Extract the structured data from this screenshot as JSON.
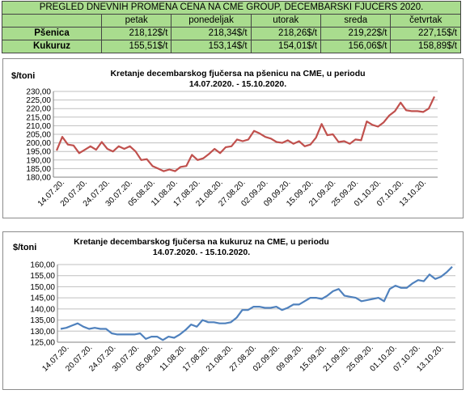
{
  "table": {
    "title": "PREGLED DNEVNIH PROMENA CENA NA CME GROUP, DECEMBARSKI  FJUCERS 2020.",
    "days": [
      "petak",
      "ponedeljak",
      "utorak",
      "sreda",
      "četvrtak"
    ],
    "rows": [
      {
        "label": "Pšenica",
        "values": [
          "218,12$/t",
          "218,34$/t",
          "218,26$/t",
          "219,22$/t",
          "227,15$/t"
        ]
      },
      {
        "label": "Kukuruz",
        "values": [
          "155,51$/t",
          "153,14$/t",
          "154,01$/t",
          "156,06$/t",
          "158,89$/t"
        ]
      }
    ]
  },
  "chart_data": [
    {
      "type": "line",
      "title_line1": "Kretanje decembarskog fjučersa na  pšenicu na CME, u periodu",
      "title_line2": "14.07.2020. - 15.10.2020.",
      "ylabel": "$/toni",
      "ylim": [
        180,
        230
      ],
      "yticks": [
        180,
        185,
        190,
        195,
        200,
        205,
        210,
        215,
        220,
        225,
        230
      ],
      "ytick_labels": [
        "180,00",
        "185,00",
        "190,00",
        "195,00",
        "200,00",
        "205,00",
        "210,00",
        "215,00",
        "220,00",
        "225,00",
        "230,00"
      ],
      "grid": true,
      "line_color": "#c0504d",
      "xtick_labels": [
        "14.07.20.",
        "20.07.20.",
        "24.07.20.",
        "30.07.20.",
        "05.08.20.",
        "11.08.20.",
        "17.08.20.",
        "21.08.20.",
        "27.08.20.",
        "02.09.20.",
        "09.09.20.",
        "15.09.20.",
        "21.09.20.",
        "25.09.20.",
        "01.10.20.",
        "07.10.20.",
        "13.10.20."
      ],
      "values": [
        195.5,
        203.5,
        199,
        198.5,
        194,
        196,
        198,
        196,
        200.5,
        196.5,
        195,
        198,
        196.5,
        198,
        195,
        190,
        190.5,
        186.5,
        185,
        183.5,
        184.5,
        183.5,
        186,
        186.5,
        193,
        190,
        191,
        193.5,
        196.5,
        194,
        197.5,
        198,
        202,
        201,
        202,
        207,
        205.5,
        203.5,
        202.5,
        200.5,
        200,
        201.5,
        199.5,
        201,
        198,
        199,
        203,
        211,
        204.5,
        205,
        200.5,
        201,
        199.5,
        202,
        201.5,
        212.5,
        210.5,
        209.5,
        212,
        216,
        218.5,
        223.5,
        219,
        218.5,
        218.5,
        218,
        220,
        227
      ]
    },
    {
      "type": "line",
      "title_line1": "Kretanje decembarskog fjučersa na  kukuruz na CME, u periodu",
      "title_line2": "14.07.2020. - 15.10.2020.",
      "ylabel": "$/toni",
      "ylim": [
        125,
        160
      ],
      "yticks": [
        125,
        130,
        135,
        140,
        145,
        150,
        155,
        160
      ],
      "ytick_labels": [
        "125,00",
        "130,00",
        "135,00",
        "140,00",
        "145,00",
        "150,00",
        "155,00",
        "160,00"
      ],
      "grid": true,
      "line_color": "#4f81bd",
      "xtick_labels": [
        "14.07.20.",
        "20.07.20.",
        "24.07.20.",
        "30.07.20.",
        "05.08.20.",
        "11.08.20.",
        "17.08.20.",
        "21.08.20.",
        "27.08.20.",
        "02.09.20.",
        "09.09.20.",
        "15.09.20.",
        "21.09.20.",
        "25.09.20.",
        "01.10.20.",
        "07.10.20.",
        "13.10.20."
      ],
      "values": [
        131,
        131.5,
        132.5,
        133.5,
        132,
        131,
        131.5,
        131,
        131,
        129,
        128.5,
        128.5,
        128.5,
        128.5,
        129,
        126.5,
        127.5,
        127.5,
        126,
        127.5,
        127,
        128.5,
        130.5,
        133,
        132,
        135,
        134,
        134,
        133.5,
        133.5,
        134,
        136,
        139.5,
        139.5,
        141,
        141,
        140.5,
        140.5,
        141,
        139.5,
        140.5,
        142,
        142,
        143.5,
        145,
        145,
        144.5,
        146,
        148,
        149,
        146,
        145.5,
        145,
        143.5,
        144,
        144.5,
        145,
        143.5,
        149,
        150.5,
        149.5,
        149.5,
        151.5,
        153,
        152.5,
        155.5,
        153.5,
        154.5,
        156.5,
        159
      ]
    }
  ]
}
